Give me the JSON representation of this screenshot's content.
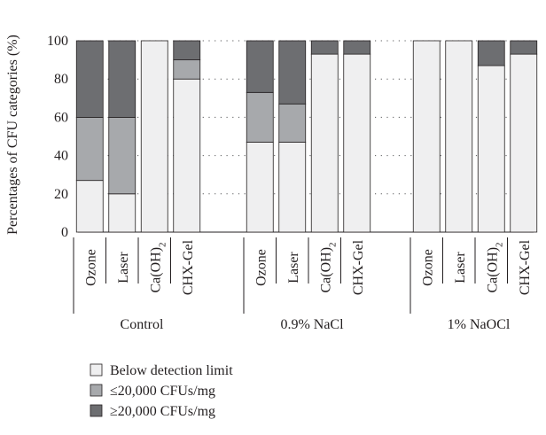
{
  "chart_data": {
    "type": "bar",
    "stacked": true,
    "ylabel": "Percentages of CFU categories (%)",
    "ylim": [
      0,
      100
    ],
    "yticks": [
      0,
      20,
      40,
      60,
      80,
      100
    ],
    "grid": "horizontal dotted",
    "groups": [
      {
        "name": "Control",
        "categories": [
          "Ozone",
          "Laser",
          "Ca(OH)2",
          "CHX-Gel"
        ]
      },
      {
        "name": "0.9% NaCl",
        "categories": [
          "Ozone",
          "Laser",
          "Ca(OH)2",
          "CHX-Gel"
        ]
      },
      {
        "name": "1% NaOCl",
        "categories": [
          "Ozone",
          "Laser",
          "Ca(OH)2",
          "CHX-Gel"
        ]
      }
    ],
    "series": [
      {
        "name": "Below detection limit",
        "color": "#efeff0",
        "values": [
          [
            27,
            20,
            100,
            80
          ],
          [
            47,
            47,
            93,
            93
          ],
          [
            100,
            100,
            87,
            93
          ]
        ]
      },
      {
        "name": "≤20,000 CFUs/mg",
        "color": "#a7a9ac",
        "values": [
          [
            33,
            40,
            0,
            10
          ],
          [
            26,
            20,
            0,
            0
          ],
          [
            0,
            0,
            0,
            0
          ]
        ]
      },
      {
        "name": "≥20,000 CFUs/mg",
        "color": "#6d6e71",
        "values": [
          [
            40,
            40,
            0,
            10
          ],
          [
            27,
            33,
            7,
            7
          ],
          [
            0,
            0,
            13,
            7
          ]
        ]
      }
    ],
    "legend_position": "bottom-left"
  }
}
